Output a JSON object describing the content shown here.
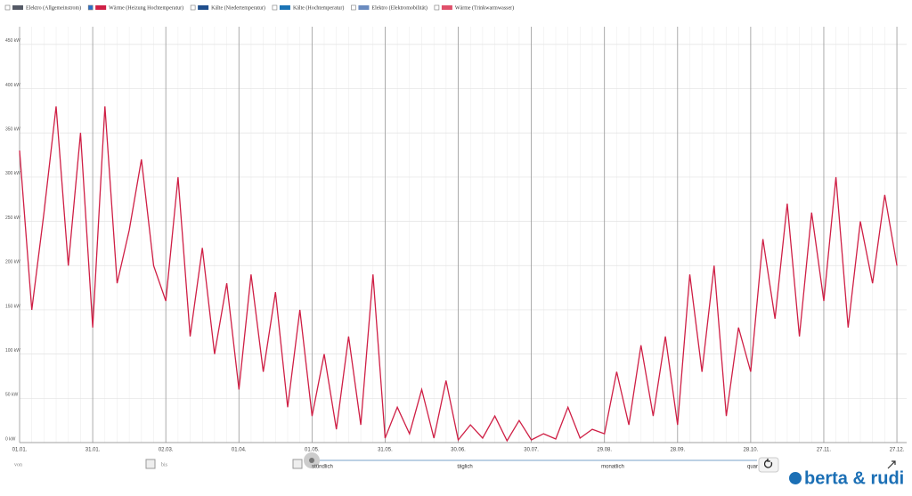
{
  "chart_data": {
    "type": "line",
    "x": [
      "01.01.",
      "06.01.",
      "11.01.",
      "16.01.",
      "21.01.",
      "26.01.",
      "31.01.",
      "05.02.",
      "10.02.",
      "15.02.",
      "20.02.",
      "25.02.",
      "02.03.",
      "07.03.",
      "12.03.",
      "17.03.",
      "22.03.",
      "27.03.",
      "01.04.",
      "06.04.",
      "11.04.",
      "16.04.",
      "21.04.",
      "26.04.",
      "01.05.",
      "06.05.",
      "11.05.",
      "16.05.",
      "21.05.",
      "26.05.",
      "31.05.",
      "05.06.",
      "10.06.",
      "15.06.",
      "20.06.",
      "25.06.",
      "30.06.",
      "05.07.",
      "10.07.",
      "15.07.",
      "20.07.",
      "25.07.",
      "30.07.",
      "04.08.",
      "09.08.",
      "14.08.",
      "19.08.",
      "24.08.",
      "29.08.",
      "03.09.",
      "08.09.",
      "13.09.",
      "18.09.",
      "23.09.",
      "28.09.",
      "03.10.",
      "08.10.",
      "13.10.",
      "18.10.",
      "23.10.",
      "28.10.",
      "02.11.",
      "07.11.",
      "12.11.",
      "17.11.",
      "22.11.",
      "27.11.",
      "02.12.",
      "07.12.",
      "12.12.",
      "17.12.",
      "22.12.",
      "27.12."
    ],
    "series": [
      {
        "name": "Wärme (Heizung Hochtemperatur)",
        "color": "#cf1f45",
        "values": [
          330,
          150,
          260,
          380,
          200,
          350,
          130,
          380,
          180,
          240,
          320,
          200,
          160,
          300,
          120,
          220,
          100,
          180,
          60,
          190,
          80,
          170,
          40,
          150,
          30,
          100,
          15,
          120,
          20,
          190,
          5,
          40,
          10,
          60,
          5,
          70,
          3,
          20,
          5,
          30,
          2,
          25,
          3,
          10,
          4,
          40,
          5,
          15,
          10,
          80,
          20,
          110,
          30,
          120,
          20,
          190,
          80,
          200,
          30,
          130,
          80,
          230,
          140,
          270,
          120,
          260,
          160,
          300,
          130,
          250,
          180,
          280,
          200
        ]
      }
    ],
    "xticks": [
      "01.01.",
      "31.01.",
      "02.03.",
      "01.04.",
      "01.05.",
      "31.05.",
      "30.06.",
      "30.07.",
      "29.08.",
      "28.09.",
      "28.10.",
      "27.11.",
      "27.12."
    ],
    "ylim": [
      0,
      470
    ],
    "yticks": [
      {
        "value": 0,
        "label": "0 kW"
      },
      {
        "value": 50,
        "label": "50 kW"
      },
      {
        "value": 100,
        "label": "100 kW"
      },
      {
        "value": 150,
        "label": "150 kW"
      },
      {
        "value": 200,
        "label": "200 kW"
      },
      {
        "value": 250,
        "label": "250 kW"
      },
      {
        "value": 300,
        "label": "300 kW"
      },
      {
        "value": 350,
        "label": "350 kW"
      },
      {
        "value": 400,
        "label": "400 kW"
      },
      {
        "value": 450,
        "label": "450 kW"
      }
    ],
    "grid": true
  },
  "ui": {
    "legend": [
      {
        "name": "Elektro (Allgemeinstrom)",
        "color": "#555a66",
        "checked": false
      },
      {
        "name": "Wärme (Heizung Hochtemperatur)",
        "color": "#cf1f45",
        "checked": true
      },
      {
        "name": "Kälte (Niedertemperatur)",
        "color": "#1f4e8c",
        "checked": false
      },
      {
        "name": "Kälte (Hochtemperatur)",
        "color": "#1a73b5",
        "checked": false
      },
      {
        "name": "Elektro (Elektromobilität)",
        "color": "#6a8bbf",
        "checked": false
      },
      {
        "name": "Wärme (Trinkwarmwasser)",
        "color": "#e0506a",
        "checked": false
      }
    ],
    "from_label": "von",
    "to_label": "bis",
    "resolutions": [
      "stündlich",
      "täglich",
      "monatlich",
      "quar"
    ],
    "logo": "berta & rudi"
  }
}
